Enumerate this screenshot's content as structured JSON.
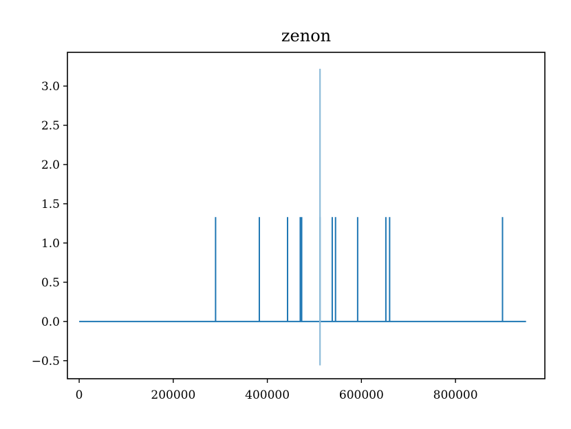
{
  "chart_data": {
    "type": "line",
    "title": "zenon",
    "xlabel": "",
    "ylabel": "",
    "xlim": [
      -25000,
      990000
    ],
    "ylim": [
      -0.73,
      3.43
    ],
    "xticks": [
      0,
      200000,
      400000,
      600000,
      800000
    ],
    "xtick_labels": [
      "0",
      "200000",
      "400000",
      "600000",
      "800000"
    ],
    "yticks": [
      -0.5,
      0.0,
      0.5,
      1.0,
      1.5,
      2.0,
      2.5,
      3.0
    ],
    "ytick_labels": [
      "−0.5",
      "0.0",
      "0.5",
      "1.0",
      "1.5",
      "2.0",
      "2.5",
      "3.0"
    ],
    "grid": false,
    "series": [
      {
        "color": "#1f77b4",
        "baseline": 0.0,
        "x_range": [
          0,
          950000
        ],
        "spike_height": 1.33,
        "spikes_x": [
          290000,
          383000,
          443000,
          470000,
          473000,
          512000,
          538000,
          545000,
          592000,
          652000,
          660000,
          900000
        ]
      },
      {
        "color": "#8fbcd9",
        "spike_x": 512000,
        "y_range": [
          -0.56,
          3.22
        ]
      }
    ]
  }
}
